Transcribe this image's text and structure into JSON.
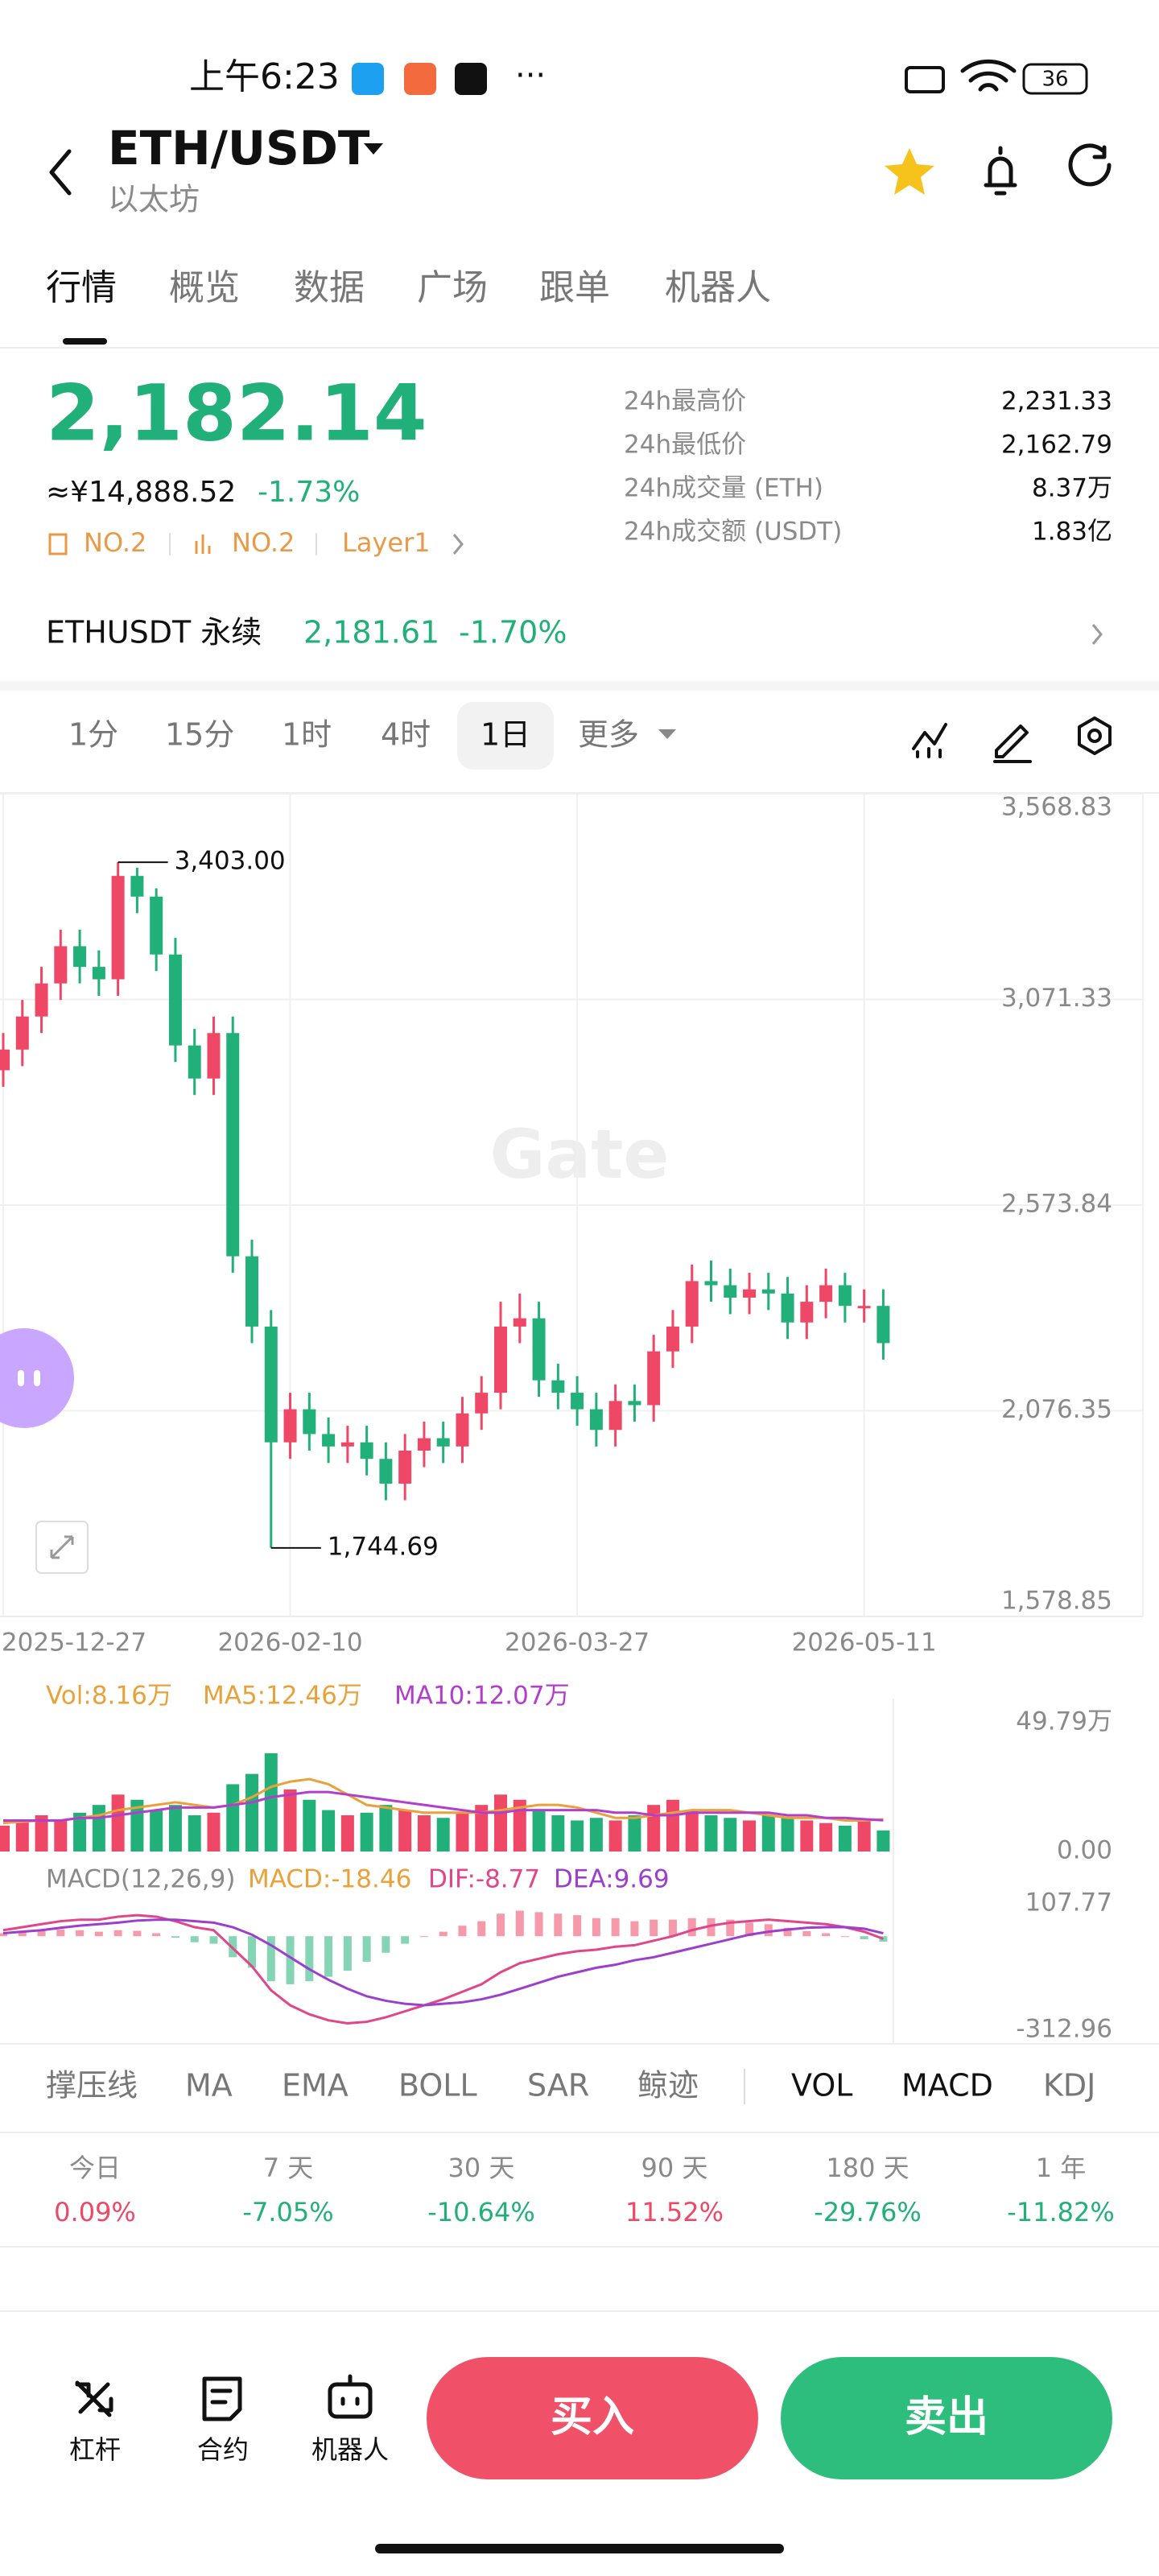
{
  "status_bar": {
    "time": "上午6:23",
    "battery": "36"
  },
  "header": {
    "title": "ETH/USDT",
    "subtitle": "以太坊"
  },
  "tabs": [
    "行情",
    "概览",
    "数据",
    "广场",
    "跟单",
    "机器人"
  ],
  "ticker": {
    "price": "2,182.14",
    "cny": "≈¥14,888.52",
    "change": "-1.73%",
    "tags": [
      "NO.2",
      "NO.2",
      "Layer1"
    ],
    "stats": [
      {
        "label": "24h最高价",
        "value": "2,231.33"
      },
      {
        "label": "24h最低价",
        "value": "2,162.79"
      },
      {
        "label": "24h成交量 (ETH)",
        "value": "8.37万"
      },
      {
        "label": "24h成交额 (USDT)",
        "value": "1.83亿"
      }
    ]
  },
  "perpetual": {
    "name": "ETHUSDT 永续",
    "price": "2,181.61",
    "change": "-1.70%"
  },
  "intervals": [
    "1分",
    "15分",
    "1时",
    "4时",
    "1日",
    "更多"
  ],
  "chart_data": [
    {
      "type": "candlestick",
      "watermark": "Gate",
      "grid": true,
      "up_color": "#ef4766",
      "down_color": "#22b07a",
      "open": [
        2900,
        2950,
        3030,
        3110,
        3200,
        3150,
        3120,
        3370,
        3320,
        3180,
        2960,
        2880,
        2990,
        2450,
        2280,
        2000,
        2080,
        2020,
        1990,
        2000,
        1960,
        1900,
        1980,
        2010,
        1990,
        2070,
        2120,
        2280,
        2300,
        2150,
        2120,
        2080,
        2030,
        2100,
        2090,
        2220,
        2280,
        2390,
        2380,
        2350,
        2370,
        2360,
        2290,
        2340,
        2380,
        2330,
        2330
      ],
      "high": [
        2990,
        3070,
        3150,
        3240,
        3240,
        3190,
        3403,
        3390,
        3340,
        3220,
        3000,
        3030,
        3030,
        2490,
        2320,
        2120,
        2120,
        2060,
        2040,
        2040,
        2000,
        2020,
        2050,
        2050,
        2110,
        2160,
        2340,
        2360,
        2340,
        2190,
        2160,
        2120,
        2140,
        2140,
        2260,
        2320,
        2430,
        2440,
        2420,
        2410,
        2410,
        2400,
        2380,
        2420,
        2410,
        2370,
        2370
      ],
      "low": [
        2860,
        2910,
        2990,
        3070,
        3110,
        3080,
        3080,
        3280,
        3140,
        2920,
        2840,
        2840,
        2410,
        2240,
        1744.69,
        1960,
        1980,
        1950,
        1950,
        1920,
        1860,
        1860,
        1940,
        1950,
        1950,
        2030,
        2080,
        2240,
        2110,
        2080,
        2040,
        1990,
        1990,
        2050,
        2050,
        2180,
        2240,
        2340,
        2310,
        2310,
        2320,
        2250,
        2250,
        2300,
        2290,
        2290,
        2200
      ],
      "close": [
        2950,
        3030,
        3110,
        3200,
        3150,
        3120,
        3370,
        3320,
        3180,
        2960,
        2880,
        2990,
        2450,
        2280,
        2000,
        2080,
        2020,
        1990,
        2000,
        1960,
        1900,
        1980,
        2010,
        1990,
        2070,
        2120,
        2280,
        2300,
        2150,
        2120,
        2080,
        2030,
        2100,
        2090,
        2220,
        2280,
        2390,
        2380,
        2350,
        2370,
        2360,
        2290,
        2340,
        2380,
        2330,
        2330,
        2240
      ],
      "ylim": [
        1578.85,
        3568.83
      ],
      "yticks": [
        {
          "value": 3568.83,
          "label": "3,568.83"
        },
        {
          "value": 3071.33,
          "label": "3,071.33"
        },
        {
          "value": 2573.84,
          "label": "2,573.84"
        },
        {
          "value": 2076.35,
          "label": "2,076.35"
        },
        {
          "value": 1578.85,
          "label": "1,578.85"
        }
      ],
      "xticks": [
        {
          "value": 0,
          "label": "2025-12-27"
        },
        {
          "value": 15,
          "label": "2026-02-10"
        },
        {
          "value": 30,
          "label": "2026-03-27"
        },
        {
          "value": 45,
          "label": "2026-05-11"
        }
      ],
      "annotations": [
        {
          "value": 3403,
          "label": "3,403.00"
        },
        {
          "value": 1744.69,
          "label": "1,744.69"
        }
      ]
    },
    {
      "type": "bar",
      "volume_label": "Vol:8.16万",
      "volume_color": "#e9a23b",
      "values": [
        10,
        12,
        14,
        12,
        15,
        18,
        22,
        20,
        16,
        18,
        14,
        15,
        26,
        30,
        38,
        24,
        20,
        16,
        14,
        15,
        18,
        16,
        14,
        13,
        15,
        18,
        22,
        20,
        16,
        14,
        12,
        13,
        12,
        14,
        18,
        20,
        16,
        14,
        13,
        12,
        14,
        13,
        12,
        11,
        10,
        12,
        8.16
      ],
      "series": [
        {
          "name": "MA5:12.46万",
          "color": "#e9a23b",
          "values": [
            11,
            11.5,
            12,
            12,
            13,
            14,
            16,
            17,
            18,
            19,
            18,
            17,
            18,
            21,
            25,
            27,
            28,
            26,
            22,
            18,
            17,
            16,
            15,
            15,
            15,
            15,
            16,
            17,
            18,
            18,
            17,
            15,
            13,
            13,
            14,
            15,
            16,
            16,
            16,
            15,
            14,
            13,
            13,
            13,
            12,
            12,
            12.46
          ]
        },
        {
          "name": "MA10:12.07万",
          "color": "#b23fcc",
          "values": [
            12,
            12,
            12,
            12,
            13,
            13,
            14,
            15,
            16,
            17,
            17,
            17,
            18,
            19,
            21,
            22,
            23,
            23,
            22,
            21,
            20,
            19,
            18,
            17,
            16,
            15,
            15,
            16,
            16,
            16,
            16,
            16,
            15,
            15,
            14,
            14,
            15,
            15,
            15,
            15,
            15,
            14,
            14,
            13,
            13,
            12.5,
            12.07
          ]
        }
      ],
      "ylim": [
        0,
        49.79
      ],
      "yticks": [
        {
          "value": 49.79,
          "label": "49.79万"
        },
        {
          "value": 0,
          "label": "0.00"
        }
      ]
    },
    {
      "type": "macd",
      "title": "MACD(12,26,9)",
      "histogram": {
        "name": "MACD:-18.46",
        "color": "#e9a23b",
        "values": [
          10,
          15,
          20,
          22,
          20,
          15,
          20,
          18,
          10,
          -5,
          -20,
          -25,
          -70,
          -105,
          -150,
          -160,
          -150,
          -135,
          -115,
          -85,
          -55,
          -25,
          0,
          15,
          35,
          50,
          75,
          85,
          80,
          75,
          70,
          60,
          60,
          50,
          55,
          55,
          60,
          60,
          55,
          45,
          40,
          28,
          17,
          10,
          0,
          -10,
          -18.46
        ]
      },
      "series": [
        {
          "name": "DIF:-8.77",
          "color": "#e0468a",
          "values": [
            20,
            30,
            40,
            50,
            55,
            55,
            65,
            70,
            65,
            50,
            30,
            20,
            -40,
            -100,
            -180,
            -230,
            -260,
            -280,
            -290,
            -285,
            -270,
            -250,
            -230,
            -210,
            -185,
            -160,
            -120,
            -90,
            -75,
            -60,
            -50,
            -45,
            -35,
            -30,
            -15,
            0,
            20,
            35,
            45,
            50,
            55,
            50,
            45,
            40,
            30,
            15,
            -8.77
          ]
        },
        {
          "name": "DEA:9.69",
          "color": "#9b3fcc",
          "values": [
            10,
            15,
            20,
            28,
            35,
            40,
            45,
            52,
            55,
            55,
            50,
            45,
            30,
            5,
            -30,
            -70,
            -110,
            -145,
            -175,
            -200,
            -215,
            -225,
            -230,
            -225,
            -220,
            -210,
            -195,
            -175,
            -155,
            -135,
            -120,
            -105,
            -95,
            -80,
            -70,
            -55,
            -40,
            -25,
            -10,
            5,
            15,
            22,
            28,
            30,
            30,
            25,
            9.69
          ]
        }
      ],
      "up_color": "#ef4766",
      "down_color": "#22b07a",
      "ylim": [
        -312.96,
        107.77
      ],
      "yticks": [
        107.77,
        -312.96
      ]
    }
  ],
  "indicators": {
    "main": [
      "撑压线",
      "MA",
      "EMA",
      "BOLL",
      "SAR",
      "鲸迹"
    ],
    "sub": [
      "VOL",
      "MACD",
      "KDJ"
    ]
  },
  "performance": [
    {
      "label": "今日",
      "value": "0.09%"
    },
    {
      "label": "7 天",
      "value": "-7.05%"
    },
    {
      "label": "30 天",
      "value": "-10.64%"
    },
    {
      "label": "90 天",
      "value": "11.52%"
    },
    {
      "label": "180 天",
      "value": "-29.76%"
    },
    {
      "label": "1 年",
      "value": "-11.82%"
    }
  ],
  "bottom_bar": {
    "actions": [
      "杠杆",
      "合约",
      "机器人"
    ],
    "buy": "买入",
    "sell": "卖出"
  }
}
